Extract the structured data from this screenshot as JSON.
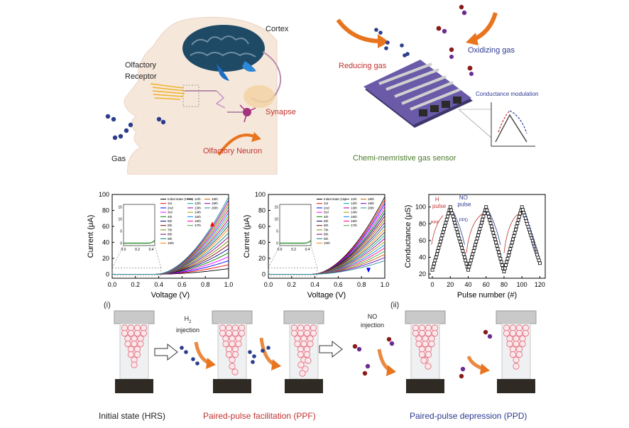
{
  "top_left": {
    "cortex": "Cortex",
    "olfactory_receptor": "Olfactory\nReceptor",
    "synapse": "Synapse",
    "gas": "Gas",
    "olfactory_neuron": "Olfactory Neuron"
  },
  "top_right": {
    "reducing_gas": "Reducing gas",
    "oxidizing_gas": "Oxidizing gas",
    "conductance_modulation": "Conductance modulation",
    "sensor_label": "Chemi-memristive gas sensor"
  },
  "bottom": {
    "panel_i": "(i)",
    "panel_ii": "(ii)",
    "h2_injection": "H",
    "h2_sub": "2",
    "injection": "injection",
    "no_injection_top": "NO",
    "no_injection_bottom": "injection",
    "initial_state": "Initial state (HRS)",
    "ppf": "Paired-pulse facilitation (PPF)",
    "ppd": "Paired-pulse depression (PPD)"
  },
  "colors": {
    "red": "#c0322e",
    "blue": "#2b3990",
    "orange": "#e8741e",
    "navy_dot": "#2b3d8c",
    "maroon_dot": "#8b1a1a",
    "purple_dot": "#6a2c91",
    "chip": "#6a5aa8"
  },
  "chart_data": [
    {
      "type": "line",
      "xlabel": "Voltage (V)",
      "ylabel": "Current (μA)",
      "xlim": [
        0.0,
        1.0
      ],
      "ylim": [
        -5,
        100
      ],
      "x_ticks": [
        "0.0",
        "0.2",
        "0.4",
        "0.6",
        "0.8",
        "1.0"
      ],
      "y_ticks": [
        "0",
        "20",
        "40",
        "60",
        "80",
        "100"
      ],
      "inset_x_ticks": [
        "0.0",
        "0.2",
        "0.4"
      ],
      "inset_y_ticks": [
        "0",
        "5",
        "10",
        "15"
      ],
      "legend_col1": [
        "Initial state (HRS)",
        "1st",
        "2nd",
        "3rd",
        "4th",
        "5th",
        "6th",
        "7th",
        "8th",
        "9th",
        "10th"
      ],
      "legend_col2": [
        "11th",
        "12th",
        "13th",
        "14th",
        "15th",
        "16th",
        "17th"
      ],
      "legend_col3": [
        "18th",
        "19th",
        "20th"
      ],
      "end_currents": [
        7,
        12,
        17,
        22,
        27,
        32,
        37,
        42,
        47,
        52,
        57,
        61,
        65,
        69,
        73,
        77,
        81,
        85,
        89,
        93,
        97
      ],
      "arrow": "up"
    },
    {
      "type": "line",
      "xlabel": "Voltage (V)",
      "ylabel": "Current (μA)",
      "xlim": [
        0.0,
        1.0
      ],
      "ylim": [
        -5,
        100
      ],
      "x_ticks": [
        "0.0",
        "0.2",
        "0.4",
        "0.6",
        "0.8",
        "1.0"
      ],
      "y_ticks": [
        "0",
        "20",
        "40",
        "60",
        "80",
        "100"
      ],
      "inset_x_ticks": [
        "0.0",
        "0.2",
        "0.4"
      ],
      "inset_y_ticks": [
        "0",
        "5",
        "10",
        "15"
      ],
      "legend_col1": [
        "Initial state (H₂)",
        "1st",
        "2nd",
        "3rd",
        "4th",
        "5th",
        "6th",
        "7th",
        "8th",
        "9th",
        "10th"
      ],
      "legend_col2": [
        "11th",
        "12th",
        "13th",
        "14th",
        "15th",
        "16th",
        "17th"
      ],
      "legend_col3": [
        "18th",
        "19th",
        "20th"
      ],
      "end_currents": [
        97,
        93,
        89,
        85,
        81,
        77,
        73,
        69,
        65,
        61,
        57,
        53,
        49,
        45,
        41,
        37,
        33,
        29,
        25,
        21,
        17
      ],
      "arrow": "down"
    },
    {
      "type": "scatter",
      "xlabel": "Pulse number (#)",
      "ylabel": "Conductance (μS)",
      "xlim": [
        -4,
        126
      ],
      "ylim": [
        15,
        115
      ],
      "x_ticks": [
        0,
        20,
        40,
        60,
        80,
        100,
        120
      ],
      "y_ticks": [
        20,
        40,
        60,
        80,
        100
      ],
      "annotations": {
        "h2": "H",
        "h2_sub": "2",
        "pulse": "pulse",
        "no": "NO",
        "no_pulse": "pulse",
        "ppf": "PPF",
        "ppd": "PPD"
      },
      "segments": [
        {
          "from": [
            0,
            25
          ],
          "to": [
            20,
            100
          ]
        },
        {
          "from": [
            20,
            100
          ],
          "to": [
            40,
            25
          ]
        },
        {
          "from": [
            40,
            25
          ],
          "to": [
            60,
            100
          ]
        },
        {
          "from": [
            60,
            100
          ],
          "to": [
            80,
            23
          ]
        },
        {
          "from": [
            80,
            23
          ],
          "to": [
            100,
            100
          ]
        },
        {
          "from": [
            100,
            100
          ],
          "to": [
            120,
            33
          ]
        }
      ]
    }
  ]
}
